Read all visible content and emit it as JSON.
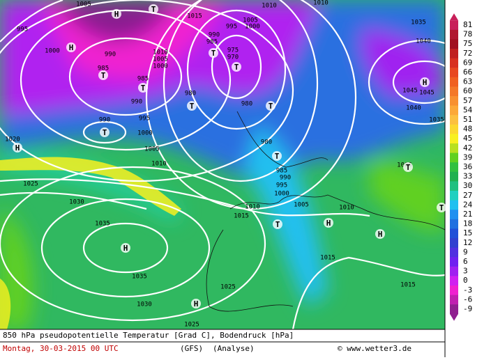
{
  "colorbar": {
    "labels": [
      81,
      78,
      75,
      72,
      69,
      66,
      63,
      60,
      57,
      54,
      51,
      48,
      45,
      42,
      39,
      36,
      33,
      30,
      27,
      24,
      21,
      18,
      15,
      12,
      9,
      6,
      3,
      0,
      -3,
      -6,
      -9
    ],
    "colors": [
      "#c8205a",
      "#b01830",
      "#a01020",
      "#c02020",
      "#d83020",
      "#e84820",
      "#f06020",
      "#f47828",
      "#f89030",
      "#fca838",
      "#fcc040",
      "#fcd830",
      "#f8f020",
      "#b8e020",
      "#60d020",
      "#30c040",
      "#20b050",
      "#20c080",
      "#20d0c0",
      "#20c0f0",
      "#2090f0",
      "#2070e0",
      "#2050d8",
      "#3040d0",
      "#5030e0",
      "#7020f0",
      "#a020f0",
      "#d020f0",
      "#f020d0",
      "#c020b0",
      "#902090"
    ]
  },
  "isobar_labels": [
    1005,
    995,
    1000,
    990,
    985,
    985,
    990,
    995,
    990,
    1000,
    1005,
    1010,
    1020,
    1025,
    1030,
    1035,
    1035,
    1030,
    1025,
    1025,
    1015,
    1010,
    1005,
    1010,
    1015,
    1015,
    1000,
    995,
    990,
    985,
    980,
    980,
    980,
    975,
    970,
    985,
    990,
    995,
    1000,
    1005,
    1010,
    1015,
    1010,
    1005,
    1000,
    1035,
    1040,
    1045,
    1045,
    1040,
    1035,
    1005,
    1010
  ],
  "pressure_centers": [
    "H",
    "H",
    "T",
    "T",
    "T",
    "T",
    "T",
    "T",
    "T",
    "H",
    "T",
    "T",
    "H",
    "T",
    "T",
    "H",
    "T",
    "H",
    "H",
    "H"
  ],
  "footer": {
    "title": "850 hPa pseudopotentielle Temperatur [Grad C], Bodendruck [hPa]",
    "date": "Montag, 30-03-2015  00 UTC",
    "model": "(GFS)",
    "kind": "(Analyse)",
    "credit": "© www.wetter3.de"
  }
}
